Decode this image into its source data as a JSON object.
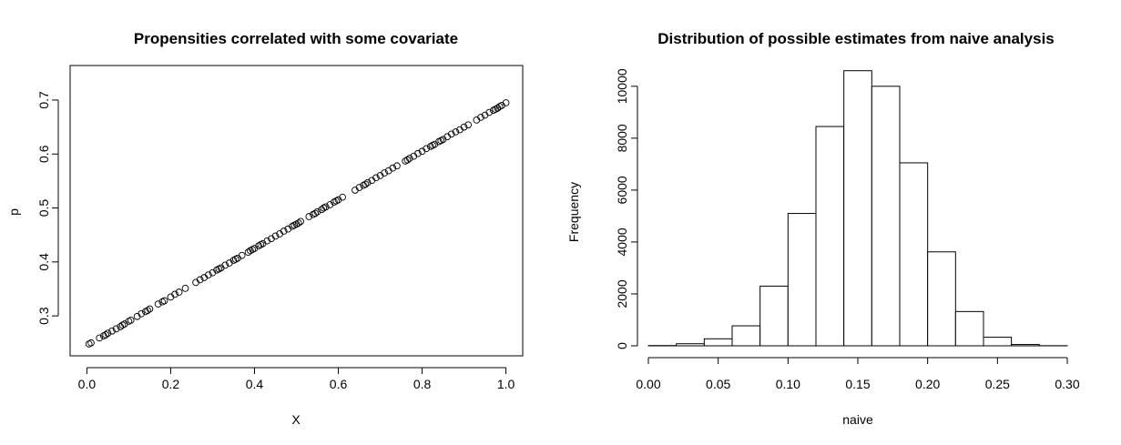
{
  "chart_data": [
    {
      "type": "scatter",
      "title": "Propensities correlated with some covariate",
      "xlabel": "X",
      "ylabel": "p",
      "xlim": [
        -0.04,
        1.04
      ],
      "ylim": [
        0.226,
        0.764
      ],
      "x_ticks": [
        0.0,
        0.2,
        0.4,
        0.6,
        0.8,
        1.0
      ],
      "x_tick_labels": [
        "0.0",
        "0.2",
        "0.4",
        "0.6",
        "0.8",
        "1.0"
      ],
      "y_ticks": [
        0.3,
        0.4,
        0.5,
        0.6,
        0.7
      ],
      "y_tick_labels": [
        "0.3",
        "0.4",
        "0.5",
        "0.6",
        "0.7"
      ],
      "grid": false,
      "marker": "open-circle",
      "x": [
        0.005,
        0.01,
        0.03,
        0.04,
        0.045,
        0.05,
        0.06,
        0.07,
        0.08,
        0.085,
        0.09,
        0.1,
        0.105,
        0.12,
        0.13,
        0.14,
        0.145,
        0.15,
        0.17,
        0.18,
        0.185,
        0.2,
        0.21,
        0.22,
        0.235,
        0.26,
        0.27,
        0.28,
        0.29,
        0.3,
        0.31,
        0.315,
        0.32,
        0.33,
        0.34,
        0.35,
        0.355,
        0.36,
        0.37,
        0.385,
        0.39,
        0.395,
        0.4,
        0.41,
        0.415,
        0.42,
        0.43,
        0.44,
        0.45,
        0.46,
        0.47,
        0.48,
        0.49,
        0.495,
        0.5,
        0.505,
        0.51,
        0.53,
        0.54,
        0.545,
        0.55,
        0.56,
        0.565,
        0.57,
        0.58,
        0.59,
        0.595,
        0.6,
        0.61,
        0.64,
        0.65,
        0.66,
        0.665,
        0.67,
        0.68,
        0.69,
        0.7,
        0.71,
        0.72,
        0.73,
        0.74,
        0.76,
        0.765,
        0.77,
        0.78,
        0.79,
        0.8,
        0.81,
        0.82,
        0.825,
        0.83,
        0.84,
        0.845,
        0.85,
        0.86,
        0.87,
        0.88,
        0.89,
        0.9,
        0.91,
        0.93,
        0.94,
        0.95,
        0.96,
        0.97,
        0.975,
        0.98,
        0.985,
        0.99,
        1.0
      ],
      "y": [
        0.248,
        0.25,
        0.259,
        0.263,
        0.265,
        0.268,
        0.272,
        0.276,
        0.28,
        0.283,
        0.285,
        0.29,
        0.292,
        0.299,
        0.304,
        0.308,
        0.31,
        0.313,
        0.322,
        0.326,
        0.328,
        0.335,
        0.34,
        0.344,
        0.351,
        0.362,
        0.367,
        0.371,
        0.376,
        0.38,
        0.385,
        0.387,
        0.389,
        0.394,
        0.398,
        0.403,
        0.405,
        0.407,
        0.412,
        0.418,
        0.421,
        0.423,
        0.425,
        0.43,
        0.432,
        0.434,
        0.439,
        0.443,
        0.448,
        0.452,
        0.457,
        0.461,
        0.466,
        0.468,
        0.47,
        0.472,
        0.475,
        0.484,
        0.488,
        0.49,
        0.493,
        0.497,
        0.5,
        0.502,
        0.506,
        0.511,
        0.513,
        0.515,
        0.52,
        0.533,
        0.538,
        0.542,
        0.544,
        0.547,
        0.551,
        0.556,
        0.56,
        0.565,
        0.569,
        0.574,
        0.578,
        0.587,
        0.589,
        0.592,
        0.596,
        0.601,
        0.605,
        0.61,
        0.614,
        0.616,
        0.618,
        0.623,
        0.625,
        0.627,
        0.632,
        0.637,
        0.641,
        0.645,
        0.65,
        0.654,
        0.663,
        0.668,
        0.672,
        0.677,
        0.681,
        0.683,
        0.685,
        0.688,
        0.69,
        0.695
      ]
    },
    {
      "type": "bar",
      "title": "Distribution of possible estimates from naive analysis",
      "xlabel": "naive",
      "ylabel": "Frequency",
      "xlim": [
        0.0,
        0.3
      ],
      "ylim": [
        0,
        10800
      ],
      "x_ticks": [
        0.0,
        0.05,
        0.1,
        0.15,
        0.2,
        0.25,
        0.3
      ],
      "x_tick_labels": [
        "0.00",
        "0.05",
        "0.10",
        "0.15",
        "0.20",
        "0.25",
        "0.30"
      ],
      "y_ticks": [
        0,
        2000,
        4000,
        6000,
        8000,
        10000
      ],
      "y_tick_labels": [
        "0",
        "2000",
        "4000",
        "6000",
        "8000",
        "10000"
      ],
      "grid": false,
      "bin_edges": [
        0.0,
        0.02,
        0.04,
        0.06,
        0.08,
        0.1,
        0.12,
        0.14,
        0.16,
        0.18,
        0.2,
        0.22,
        0.24,
        0.26,
        0.28,
        0.3
      ],
      "values": [
        10,
        80,
        270,
        770,
        2300,
        5100,
        8450,
        10600,
        10000,
        7050,
        3620,
        1320,
        330,
        50,
        5
      ]
    }
  ]
}
